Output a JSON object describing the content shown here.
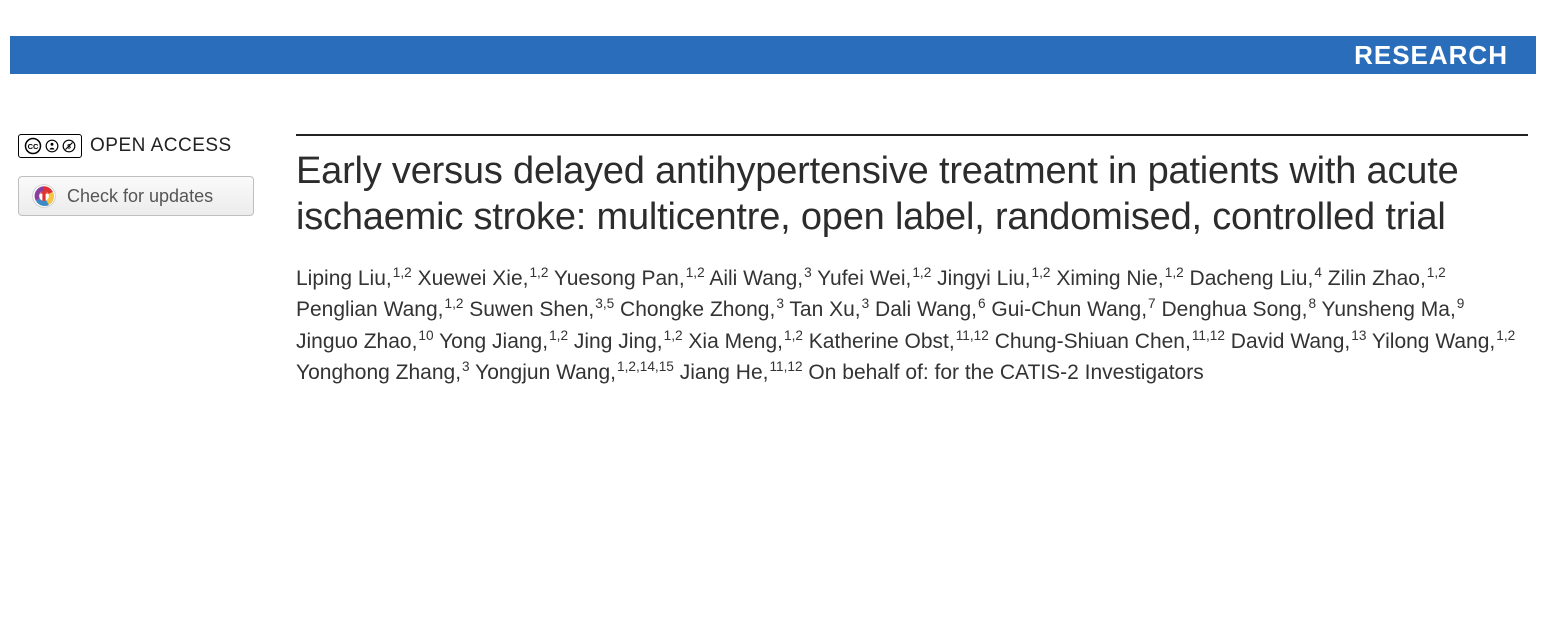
{
  "banner": {
    "label": "RESEARCH",
    "background_color": "#2a6ebb",
    "text_color": "#ffffff"
  },
  "sidebar": {
    "open_access_label": "OPEN ACCESS",
    "cc_icons": [
      "cc",
      "by",
      "nc"
    ],
    "check_updates_label": "Check for updates"
  },
  "article": {
    "title": "Early versus delayed antihypertensive treatment in patients with acute ischaemic stroke: multicentre, open label, randomised, controlled trial",
    "authors": [
      {
        "name": "Liping Liu",
        "affil": "1,2"
      },
      {
        "name": "Xuewei Xie",
        "affil": "1,2"
      },
      {
        "name": "Yuesong Pan",
        "affil": "1,2"
      },
      {
        "name": "Aili Wang",
        "affil": "3"
      },
      {
        "name": "Yufei Wei",
        "affil": "1,2"
      },
      {
        "name": "Jingyi Liu",
        "affil": "1,2"
      },
      {
        "name": "Ximing Nie",
        "affil": "1,2"
      },
      {
        "name": "Dacheng Liu",
        "affil": "4"
      },
      {
        "name": "Zilin Zhao",
        "affil": "1,2"
      },
      {
        "name": "Penglian Wang",
        "affil": "1,2"
      },
      {
        "name": "Suwen Shen",
        "affil": "3,5"
      },
      {
        "name": "Chongke Zhong",
        "affil": "3"
      },
      {
        "name": "Tan Xu",
        "affil": "3"
      },
      {
        "name": "Dali Wang",
        "affil": "6"
      },
      {
        "name": "Gui-Chun Wang",
        "affil": "7"
      },
      {
        "name": "Denghua Song",
        "affil": "8"
      },
      {
        "name": "Yunsheng Ma",
        "affil": "9"
      },
      {
        "name": "Jinguo Zhao",
        "affil": "10"
      },
      {
        "name": "Yong Jiang",
        "affil": "1,2"
      },
      {
        "name": "Jing Jing",
        "affil": "1,2"
      },
      {
        "name": "Xia Meng",
        "affil": "1,2"
      },
      {
        "name": "Katherine Obst",
        "affil": "11,12"
      },
      {
        "name": "Chung-Shiuan Chen",
        "affil": "11,12"
      },
      {
        "name": "David Wang",
        "affil": "13"
      },
      {
        "name": "Yilong Wang",
        "affil": "1,2"
      },
      {
        "name": "Yonghong Zhang",
        "affil": "3"
      },
      {
        "name": "Yongjun Wang",
        "affil": "1,2,14,15"
      },
      {
        "name": "Jiang He",
        "affil": "11,12"
      }
    ],
    "on_behalf": "On behalf of: for the CATIS-2 Investigators",
    "title_fontsize": 38,
    "author_fontsize": 21,
    "rule_color": "#222222"
  },
  "typography": {
    "font_family": "Helvetica Neue, Helvetica, Arial, sans-serif",
    "background_color": "#ffffff"
  }
}
